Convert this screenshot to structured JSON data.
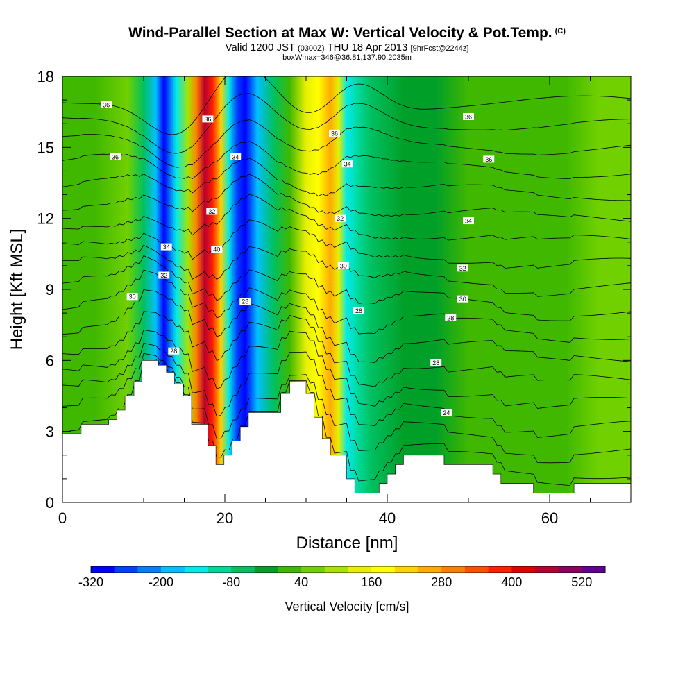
{
  "chart_data": {
    "type": "heatmap",
    "title": "Wind-Parallel Section at Max W: Vertical Velocity & Pot.Temp.",
    "title_mark": "(C)",
    "subtitle_main": "Valid 1200 JST",
    "subtitle_utc": "(0300Z)",
    "subtitle_date": "THU 18 Apr 2013",
    "subtitle_fcst": "[9hrFcst@2244z]",
    "subtitle2": "boxWmax=346@36.81,137.90,2035m",
    "xlabel": "Distance [nm]",
    "ylabel": "Height [Kft MSL]",
    "xlim": [
      0,
      70
    ],
    "ylim": [
      0,
      18
    ],
    "x_ticks": [
      0,
      20,
      40,
      60
    ],
    "y_ticks": [
      0,
      3,
      6,
      9,
      12,
      15,
      18
    ],
    "colorbar": {
      "label": "Vertical Velocity [cm/s]",
      "tick_labels": [
        "-320",
        "-200",
        "-80",
        "40",
        "160",
        "280",
        "400",
        "520"
      ],
      "min": -320,
      "max": 580,
      "colors": [
        "#0000ff",
        "#0040ff",
        "#0080ff",
        "#00c0ff",
        "#00eaea",
        "#00d898",
        "#00c060",
        "#00a028",
        "#40b800",
        "#70d000",
        "#a8e200",
        "#e8f000",
        "#ffff00",
        "#ffd200",
        "#ffaa00",
        "#ff8000",
        "#ff5000",
        "#ff2000",
        "#e00000",
        "#b80030",
        "#8c0060",
        "#600090"
      ]
    },
    "velocity_bands": [
      {
        "x": 0,
        "value": 20
      },
      {
        "x": 4,
        "value": 15
      },
      {
        "x": 8,
        "value": 70
      },
      {
        "x": 10,
        "value": -40
      },
      {
        "x": 11.5,
        "value": -180
      },
      {
        "x": 12.5,
        "value": -280
      },
      {
        "x": 14,
        "value": -120
      },
      {
        "x": 15.5,
        "value": 120
      },
      {
        "x": 16.5,
        "value": 300
      },
      {
        "x": 17.5,
        "value": 460
      },
      {
        "x": 18.5,
        "value": 380
      },
      {
        "x": 19.5,
        "value": 220
      },
      {
        "x": 20.5,
        "value": -130
      },
      {
        "x": 21.5,
        "value": -240
      },
      {
        "x": 22.5,
        "value": -300
      },
      {
        "x": 24,
        "value": -180
      },
      {
        "x": 26,
        "value": -60
      },
      {
        "x": 28,
        "value": 20
      },
      {
        "x": 30,
        "value": 130
      },
      {
        "x": 31.5,
        "value": 200
      },
      {
        "x": 33,
        "value": 260
      },
      {
        "x": 34,
        "value": 160
      },
      {
        "x": 35,
        "value": -140
      },
      {
        "x": 36.5,
        "value": -90
      },
      {
        "x": 38,
        "value": -40
      },
      {
        "x": 42,
        "value": -20
      },
      {
        "x": 46,
        "value": -10
      },
      {
        "x": 50,
        "value": 40
      },
      {
        "x": 54,
        "value": 20
      },
      {
        "x": 58,
        "value": 30
      },
      {
        "x": 62,
        "value": 25
      },
      {
        "x": 66,
        "value": 70
      },
      {
        "x": 70,
        "value": 50
      }
    ],
    "terrain": [
      [
        0,
        2.9
      ],
      [
        2.3,
        2.9
      ],
      [
        2.3,
        3.3
      ],
      [
        5.7,
        3.3
      ],
      [
        5.7,
        3.5
      ],
      [
        6.7,
        3.5
      ],
      [
        6.7,
        3.9
      ],
      [
        7.7,
        3.9
      ],
      [
        7.7,
        4.5
      ],
      [
        8.8,
        4.5
      ],
      [
        8.8,
        5.1
      ],
      [
        9.8,
        5.1
      ],
      [
        9.8,
        6.0
      ],
      [
        11.8,
        6.0
      ],
      [
        11.8,
        5.8
      ],
      [
        12.8,
        5.8
      ],
      [
        12.8,
        5.5
      ],
      [
        13.8,
        5.5
      ],
      [
        13.8,
        5.0
      ],
      [
        14.9,
        5.0
      ],
      [
        14.9,
        4.5
      ],
      [
        15.9,
        4.5
      ],
      [
        15.9,
        3.3
      ],
      [
        17.9,
        3.3
      ],
      [
        17.9,
        2.4
      ],
      [
        18.9,
        2.4
      ],
      [
        18.9,
        1.6
      ],
      [
        19.9,
        1.6
      ],
      [
        19.9,
        2.0
      ],
      [
        20.9,
        2.0
      ],
      [
        20.9,
        2.6
      ],
      [
        21.9,
        2.6
      ],
      [
        21.9,
        3.2
      ],
      [
        22.9,
        3.2
      ],
      [
        22.9,
        3.8
      ],
      [
        26.9,
        3.8
      ],
      [
        26.9,
        4.6
      ],
      [
        28.0,
        4.6
      ],
      [
        28.0,
        5.1
      ],
      [
        30.0,
        5.1
      ],
      [
        30.0,
        4.6
      ],
      [
        31.0,
        4.6
      ],
      [
        31.0,
        3.6
      ],
      [
        32.0,
        3.6
      ],
      [
        32.0,
        2.7
      ],
      [
        33.0,
        2.7
      ],
      [
        33.0,
        2.0
      ],
      [
        35.0,
        2.0
      ],
      [
        35.0,
        1.0
      ],
      [
        36.0,
        1.0
      ],
      [
        36.0,
        0.4
      ],
      [
        39.0,
        0.4
      ],
      [
        39.0,
        0.8
      ],
      [
        40.0,
        0.8
      ],
      [
        40.0,
        1.2
      ],
      [
        41.0,
        1.2
      ],
      [
        41.0,
        1.6
      ],
      [
        42.0,
        1.6
      ],
      [
        42.0,
        2.0
      ],
      [
        47.0,
        2.0
      ],
      [
        47.0,
        1.6
      ],
      [
        53.0,
        1.6
      ],
      [
        53.0,
        1.2
      ],
      [
        54.0,
        1.2
      ],
      [
        54.0,
        0.8
      ],
      [
        58.0,
        0.8
      ],
      [
        58.0,
        0.4
      ],
      [
        63.0,
        0.4
      ],
      [
        63.0,
        0.8
      ],
      [
        70,
        0.8
      ],
      [
        70,
        0
      ],
      [
        0,
        0
      ]
    ],
    "theta_contours": [
      {
        "base": 21,
        "step": 1,
        "count": 17,
        "bottom_km": 0.1
      },
      {
        "note_labels_only": true
      }
    ],
    "contour_labels": [
      {
        "text": "36",
        "x": 5.4,
        "y": 16.8
      },
      {
        "text": "36",
        "x": 6.5,
        "y": 14.6
      },
      {
        "text": "36",
        "x": 17.9,
        "y": 16.2
      },
      {
        "text": "34",
        "x": 21.3,
        "y": 14.6
      },
      {
        "text": "32",
        "x": 18.4,
        "y": 12.3
      },
      {
        "text": "40",
        "x": 19.0,
        "y": 10.7
      },
      {
        "text": "34",
        "x": 12.8,
        "y": 10.8
      },
      {
        "text": "32",
        "x": 12.5,
        "y": 9.6
      },
      {
        "text": "30",
        "x": 8.6,
        "y": 8.7
      },
      {
        "text": "28",
        "x": 13.7,
        "y": 6.4
      },
      {
        "text": "28",
        "x": 22.5,
        "y": 8.5
      },
      {
        "text": "36",
        "x": 33.5,
        "y": 15.6
      },
      {
        "text": "34",
        "x": 35.1,
        "y": 14.3
      },
      {
        "text": "32",
        "x": 34.2,
        "y": 12.0
      },
      {
        "text": "30",
        "x": 34.6,
        "y": 10.0
      },
      {
        "text": "28",
        "x": 36.5,
        "y": 8.1
      },
      {
        "text": "36",
        "x": 50.0,
        "y": 16.3
      },
      {
        "text": "36",
        "x": 52.5,
        "y": 14.5
      },
      {
        "text": "34",
        "x": 50.0,
        "y": 11.9
      },
      {
        "text": "32",
        "x": 49.3,
        "y": 9.9
      },
      {
        "text": "30",
        "x": 49.3,
        "y": 8.6
      },
      {
        "text": "28",
        "x": 47.8,
        "y": 7.8
      },
      {
        "text": "28",
        "x": 46.0,
        "y": 5.9
      },
      {
        "text": "24",
        "x": 47.3,
        "y": 3.8
      }
    ]
  }
}
